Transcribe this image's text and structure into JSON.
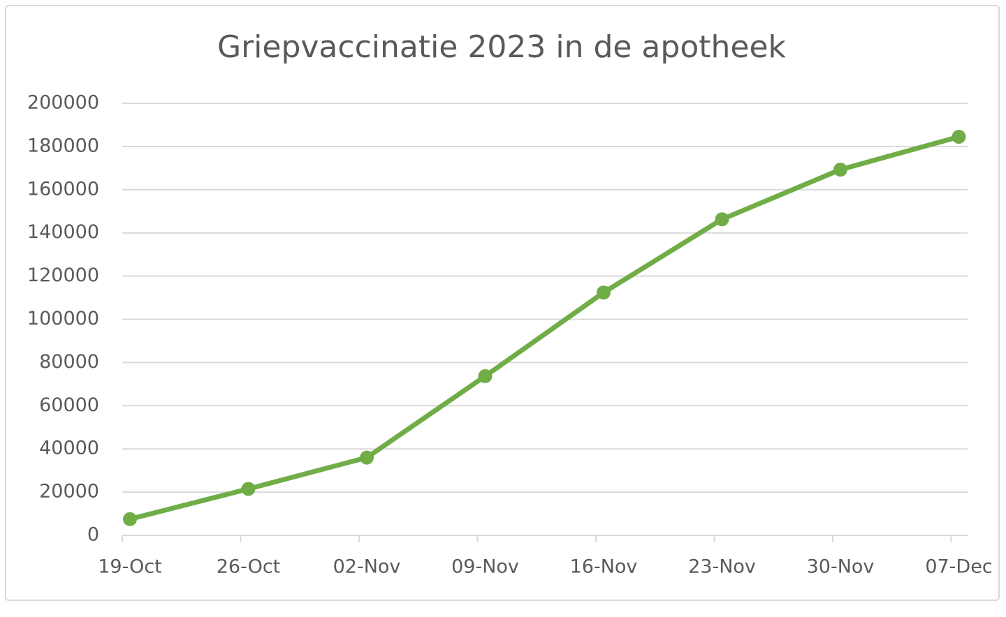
{
  "chart_data": {
    "type": "line",
    "title": "Griepvaccinatie 2023 in de apotheek",
    "categories": [
      "19-Oct",
      "26-Oct",
      "02-Nov",
      "09-Nov",
      "16-Nov",
      "23-Nov",
      "30-Nov",
      "07-Dec"
    ],
    "series": [
      {
        "color": "#70ad47",
        "values": [
          7500,
          21500,
          36000,
          73700,
          112400,
          146300,
          169300,
          184500
        ]
      }
    ],
    "ylim": [
      0,
      200000
    ],
    "yticks": [
      0,
      20000,
      40000,
      60000,
      80000,
      100000,
      120000,
      140000,
      160000,
      180000,
      200000
    ],
    "grid": true
  }
}
